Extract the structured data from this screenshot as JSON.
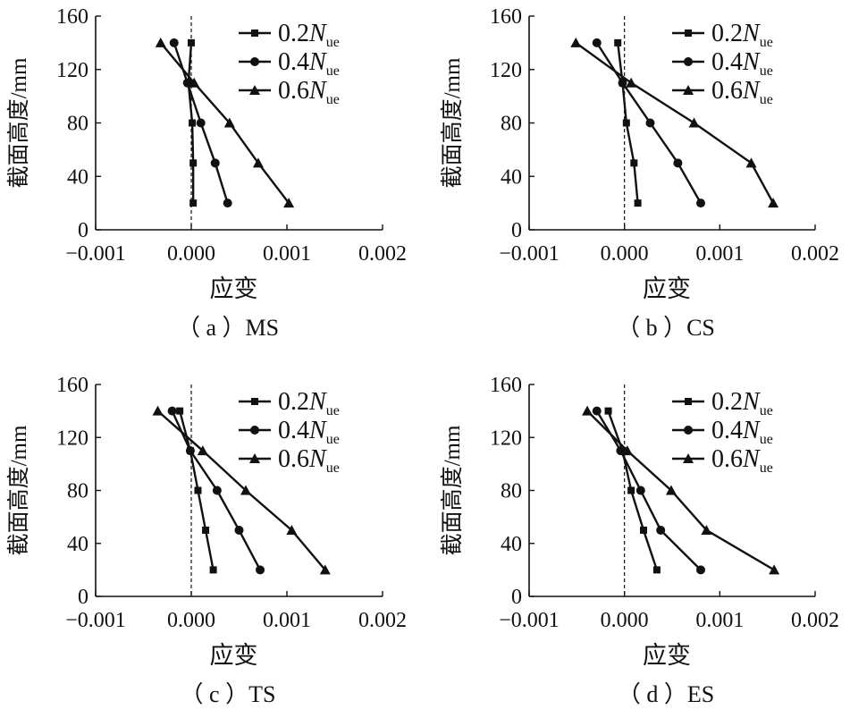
{
  "chart_data": [
    {
      "type": "line",
      "caption": "（ a ）MS",
      "xlabel": "应变",
      "ylabel": "截面高度/mm",
      "xlim": [
        -0.001,
        0.002
      ],
      "ylim": [
        0,
        160
      ],
      "xticks": [
        -0.001,
        0.0,
        0.001,
        0.002
      ],
      "xtick_labels": [
        "−0.001",
        "0.000",
        "0.001",
        "0.002"
      ],
      "yticks": [
        0,
        40,
        80,
        120,
        160
      ],
      "ytick_labels": [
        "0",
        "40",
        "80",
        "120",
        "160"
      ],
      "legend_position": "top-right",
      "zero_line": "dashed",
      "series": [
        {
          "name": "0.2N_ue",
          "name_main": "0.2",
          "name_italic": "N",
          "name_sub": "ue",
          "marker": "square",
          "x": [
            2e-05,
            2e-05,
            1e-05,
            -3e-05,
            0.0
          ],
          "y": [
            20,
            50,
            80,
            110,
            140
          ]
        },
        {
          "name": "0.4N_ue",
          "name_main": "0.4",
          "name_italic": "N",
          "name_sub": "ue",
          "marker": "circle",
          "x": [
            0.00038,
            0.00025,
            0.0001,
            -4e-05,
            -0.00018
          ],
          "y": [
            20,
            50,
            80,
            110,
            140
          ]
        },
        {
          "name": "0.6N_ue",
          "name_main": "0.6",
          "name_italic": "N",
          "name_sub": "ue",
          "marker": "triangle",
          "x": [
            0.00102,
            0.0007,
            0.0004,
            3e-05,
            -0.00032
          ],
          "y": [
            20,
            50,
            80,
            110,
            140
          ]
        }
      ]
    },
    {
      "type": "line",
      "caption": "（ b ）CS",
      "xlabel": "应变",
      "ylabel": "截面高度/mm",
      "xlim": [
        -0.001,
        0.002
      ],
      "ylim": [
        0,
        160
      ],
      "xticks": [
        -0.001,
        0.0,
        0.001,
        0.002
      ],
      "xtick_labels": [
        "−0.001",
        "0.000",
        "0.001",
        "0.002"
      ],
      "yticks": [
        0,
        40,
        80,
        120,
        160
      ],
      "ytick_labels": [
        "0",
        "40",
        "80",
        "120",
        "160"
      ],
      "legend_position": "top-right",
      "zero_line": "dashed",
      "series": [
        {
          "name": "0.2N_ue",
          "name_main": "0.2",
          "name_italic": "N",
          "name_sub": "ue",
          "marker": "square",
          "x": [
            0.00014,
            0.0001,
            2e-05,
            -2e-05,
            -7e-05
          ],
          "y": [
            20,
            50,
            80,
            110,
            140
          ]
        },
        {
          "name": "0.4N_ue",
          "name_main": "0.4",
          "name_italic": "N",
          "name_sub": "ue",
          "marker": "circle",
          "x": [
            0.0008,
            0.00056,
            0.00027,
            -2e-05,
            -0.00029
          ],
          "y": [
            20,
            50,
            80,
            110,
            140
          ]
        },
        {
          "name": "0.6N_ue",
          "name_main": "0.6",
          "name_italic": "N",
          "name_sub": "ue",
          "marker": "triangle",
          "x": [
            0.00156,
            0.00133,
            0.00073,
            7e-05,
            -0.00051
          ],
          "y": [
            20,
            50,
            80,
            110,
            140
          ]
        }
      ]
    },
    {
      "type": "line",
      "caption": "（ c ）TS",
      "xlabel": "应变",
      "ylabel": "截面高度/mm",
      "xlim": [
        -0.001,
        0.002
      ],
      "ylim": [
        0,
        160
      ],
      "xticks": [
        -0.001,
        0.0,
        0.001,
        0.002
      ],
      "xtick_labels": [
        "−0.001",
        "0.000",
        "0.001",
        "0.002"
      ],
      "yticks": [
        0,
        40,
        80,
        120,
        160
      ],
      "ytick_labels": [
        "0",
        "40",
        "80",
        "120",
        "160"
      ],
      "legend_position": "top-right",
      "zero_line": "dashed",
      "series": [
        {
          "name": "0.2N_ue",
          "name_main": "0.2",
          "name_italic": "N",
          "name_sub": "ue",
          "marker": "square",
          "x": [
            0.00023,
            0.00015,
            7e-05,
            -1e-05,
            -0.00012
          ],
          "y": [
            20,
            50,
            80,
            110,
            140
          ]
        },
        {
          "name": "0.4N_ue",
          "name_main": "0.4",
          "name_italic": "N",
          "name_sub": "ue",
          "marker": "circle",
          "x": [
            0.00072,
            0.0005,
            0.00027,
            -1e-05,
            -0.0002
          ],
          "y": [
            20,
            50,
            80,
            110,
            140
          ]
        },
        {
          "name": "0.6N_ue",
          "name_main": "0.6",
          "name_italic": "N",
          "name_sub": "ue",
          "marker": "triangle",
          "x": [
            0.0014,
            0.00105,
            0.00057,
            0.00012,
            -0.00035
          ],
          "y": [
            20,
            50,
            80,
            110,
            140
          ]
        }
      ]
    },
    {
      "type": "line",
      "caption": "（ d ）ES",
      "xlabel": "应变",
      "ylabel": "截面高度/mm",
      "xlim": [
        -0.001,
        0.002
      ],
      "ylim": [
        0,
        160
      ],
      "xticks": [
        -0.001,
        0.0,
        0.001,
        0.002
      ],
      "xtick_labels": [
        "−0.001",
        "0.000",
        "0.001",
        "0.002"
      ],
      "yticks": [
        0,
        40,
        80,
        120,
        160
      ],
      "ytick_labels": [
        "0",
        "40",
        "80",
        "120",
        "160"
      ],
      "legend_position": "top-right",
      "zero_line": "dashed",
      "series": [
        {
          "name": "0.2N_ue",
          "name_main": "0.2",
          "name_italic": "N",
          "name_sub": "ue",
          "marker": "square",
          "x": [
            0.00034,
            0.0002,
            7e-05,
            -2e-05,
            -0.00017
          ],
          "y": [
            20,
            50,
            80,
            110,
            140
          ]
        },
        {
          "name": "0.4N_ue",
          "name_main": "0.4",
          "name_italic": "N",
          "name_sub": "ue",
          "marker": "circle",
          "x": [
            0.0008,
            0.00038,
            0.00017,
            -4e-05,
            -0.00029
          ],
          "y": [
            20,
            50,
            80,
            110,
            140
          ]
        },
        {
          "name": "0.6N_ue",
          "name_main": "0.6",
          "name_italic": "N",
          "name_sub": "ue",
          "marker": "triangle",
          "x": [
            0.00157,
            0.00086,
            0.00049,
            3e-05,
            -0.00039
          ],
          "y": [
            20,
            50,
            80,
            110,
            140
          ]
        }
      ]
    }
  ]
}
